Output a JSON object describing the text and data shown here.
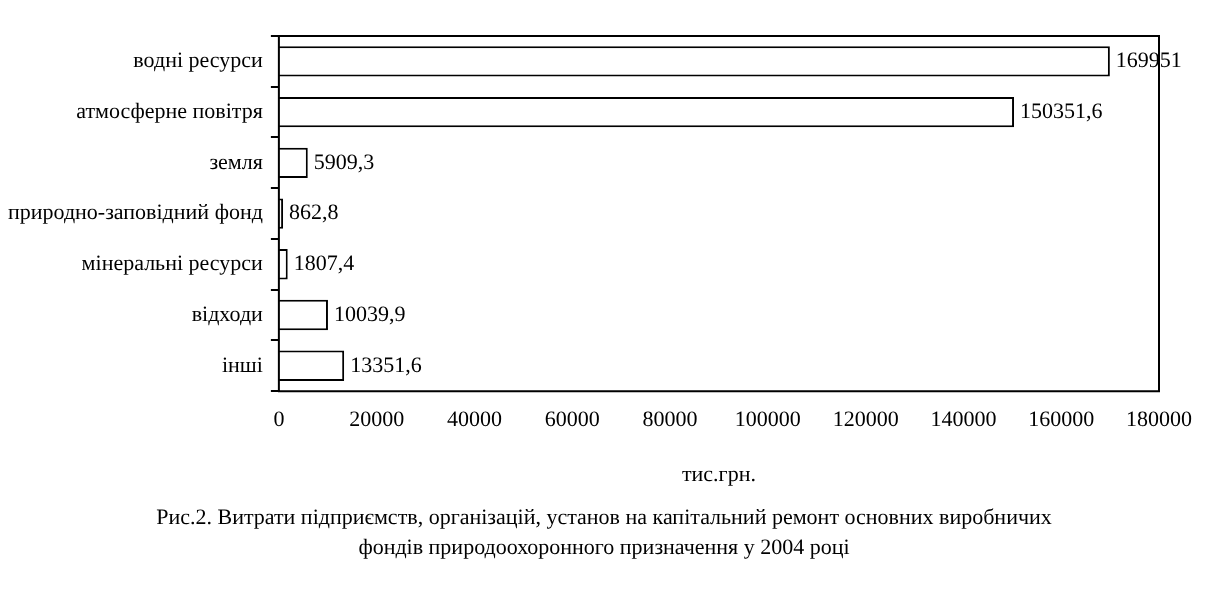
{
  "chart_data": {
    "type": "bar",
    "orientation": "horizontal",
    "categories": [
      "водні ресурси",
      "атмосферне повітря",
      "земля",
      "природно-заповідний фонд",
      "мінеральні ресурси",
      "відходи",
      "інші"
    ],
    "values": [
      169951,
      150351.6,
      5909.3,
      862.8,
      1807.4,
      10039.9,
      13351.6
    ],
    "value_labels": [
      "169951",
      "150351,6",
      "5909,3",
      "862,8",
      "1807,4",
      "10039,9",
      "13351,6"
    ],
    "color": "#ffffff",
    "xlim": [
      0,
      180000
    ],
    "xticks": [
      0,
      20000,
      40000,
      60000,
      80000,
      100000,
      120000,
      140000,
      160000,
      180000
    ],
    "xlabel": "тис.грн.",
    "annotations": [
      "Рис.2. Витрати підприємств, організацій, установ на капітальний ремонт основних виробничих фондів природоохоронного призначення у 2004 році"
    ],
    "grid": false,
    "legend": false
  }
}
